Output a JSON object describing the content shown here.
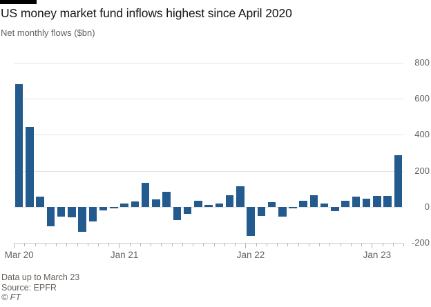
{
  "header": {
    "title": "US money market fund inflows highest since April 2020",
    "subtitle": "Net monthly flows ($bn)"
  },
  "footer": {
    "note": "Data up to March 23",
    "source": "Source: EPFR",
    "credit": "© FT"
  },
  "chart_data": {
    "type": "bar",
    "title": "US money market fund inflows highest since April 2020",
    "ylabel": "Net monthly flows ($bn)",
    "xlabel": "",
    "categories": [
      "Mar 20",
      "Apr 20",
      "May 20",
      "Jun 20",
      "Jul 20",
      "Aug 20",
      "Sep 20",
      "Oct 20",
      "Nov 20",
      "Dec 20",
      "Jan 21",
      "Feb 21",
      "Mar 21",
      "Apr 21",
      "May 21",
      "Jun 21",
      "Jul 21",
      "Aug 21",
      "Sep 21",
      "Oct 21",
      "Nov 21",
      "Dec 21",
      "Jan 22",
      "Feb 22",
      "Mar 22",
      "Apr 22",
      "May 22",
      "Jun 22",
      "Jul 22",
      "Aug 22",
      "Sep 22",
      "Oct 22",
      "Nov 22",
      "Dec 22",
      "Jan 23",
      "Feb 23",
      "Mar 23"
    ],
    "values": [
      680,
      445,
      55,
      -110,
      -55,
      -60,
      -140,
      -80,
      -20,
      -10,
      20,
      30,
      135,
      40,
      85,
      -75,
      -40,
      35,
      10,
      20,
      65,
      115,
      -160,
      -50,
      25,
      -55,
      -10,
      35,
      65,
      20,
      -25,
      35,
      55,
      45,
      60,
      60,
      285
    ],
    "ylim": [
      -200,
      800
    ],
    "yticks": [
      800,
      600,
      400,
      200,
      0,
      -200
    ],
    "xtick_labels": [
      {
        "label": "Mar 20",
        "index": 0
      },
      {
        "label": "Jan 21",
        "index": 10
      },
      {
        "label": "Jan 22",
        "index": 22
      },
      {
        "label": "Jan 23",
        "index": 34
      }
    ],
    "grid": "horizontal",
    "legend": "none",
    "bar_color": "#245b8e",
    "gridline_color": "#e6e2dc",
    "tick_color": "#b9b3ac"
  }
}
